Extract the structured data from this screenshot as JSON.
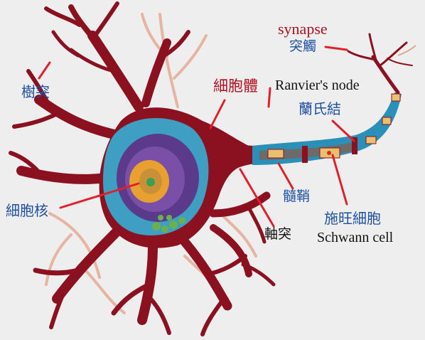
{
  "colors": {
    "background": "#eeeeee",
    "neuron_body": "#8b1020",
    "nucleus_cytoplasm": "#3aa0c8",
    "nucleus_purple": "#5b3a8c",
    "nucleolus": "#e8a030",
    "myelin": "#2a90b8",
    "schwann_cell": "#e8c070",
    "label_blue": "#1f4fa0",
    "label_red": "#b01020",
    "label_black": "#111111",
    "pointer_line": "#e0202a",
    "faded_dendrite": "#e0a890"
  },
  "labels": {
    "synapse_en": "synapse",
    "synapse_zh": "突觸",
    "dendrite": "樹突",
    "soma": "細胞體",
    "ranvier_en": "Ranvier's node",
    "ranvier_zh": "蘭氏結",
    "nucleus": "細胞核",
    "myelin": "髓鞘",
    "schwann_zh": "施旺細胞",
    "schwann_en": "Schwann cell",
    "axon": "軸突"
  }
}
